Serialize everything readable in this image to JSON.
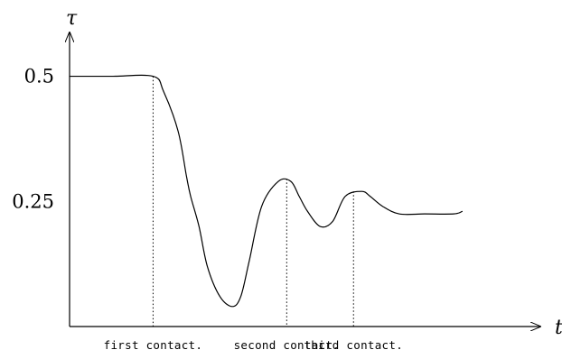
{
  "chart_data": {
    "type": "line",
    "title": "",
    "xlabel": "t",
    "ylabel": "τ",
    "xlim": [
      0,
      10.3
    ],
    "ylim": [
      0,
      0.62
    ],
    "grid": false,
    "yticks": [
      {
        "value": 0.5,
        "label": "0.5"
      },
      {
        "value": 0.25,
        "label": "0.25"
      }
    ],
    "series": [
      {
        "x": [
          0,
          1,
          2,
          2.25,
          2.6,
          2.8,
          2.9,
          3.1,
          3.3,
          3.6,
          3.9,
          4.1,
          4.3,
          4.6,
          5.0,
          5.3,
          5.5,
          5.7,
          6.0,
          6.3,
          6.6,
          7.0,
          7.2,
          7.5,
          7.9,
          8.5,
          9.2,
          9.4
        ],
        "values": [
          0.5,
          0.5,
          0.5,
          0.47,
          0.39,
          0.3,
          0.26,
          0.2,
          0.12,
          0.06,
          0.04,
          0.06,
          0.13,
          0.24,
          0.29,
          0.29,
          0.26,
          0.23,
          0.2,
          0.21,
          0.26,
          0.27,
          0.26,
          0.24,
          0.225,
          0.225,
          0.225,
          0.23
        ]
      }
    ],
    "events": [
      {
        "x": 2.0,
        "y": 0.5,
        "label": "first contact."
      },
      {
        "x": 5.2,
        "y": 0.295,
        "label": "second contact."
      },
      {
        "x": 6.8,
        "y": 0.27,
        "label": "third contact."
      }
    ]
  }
}
